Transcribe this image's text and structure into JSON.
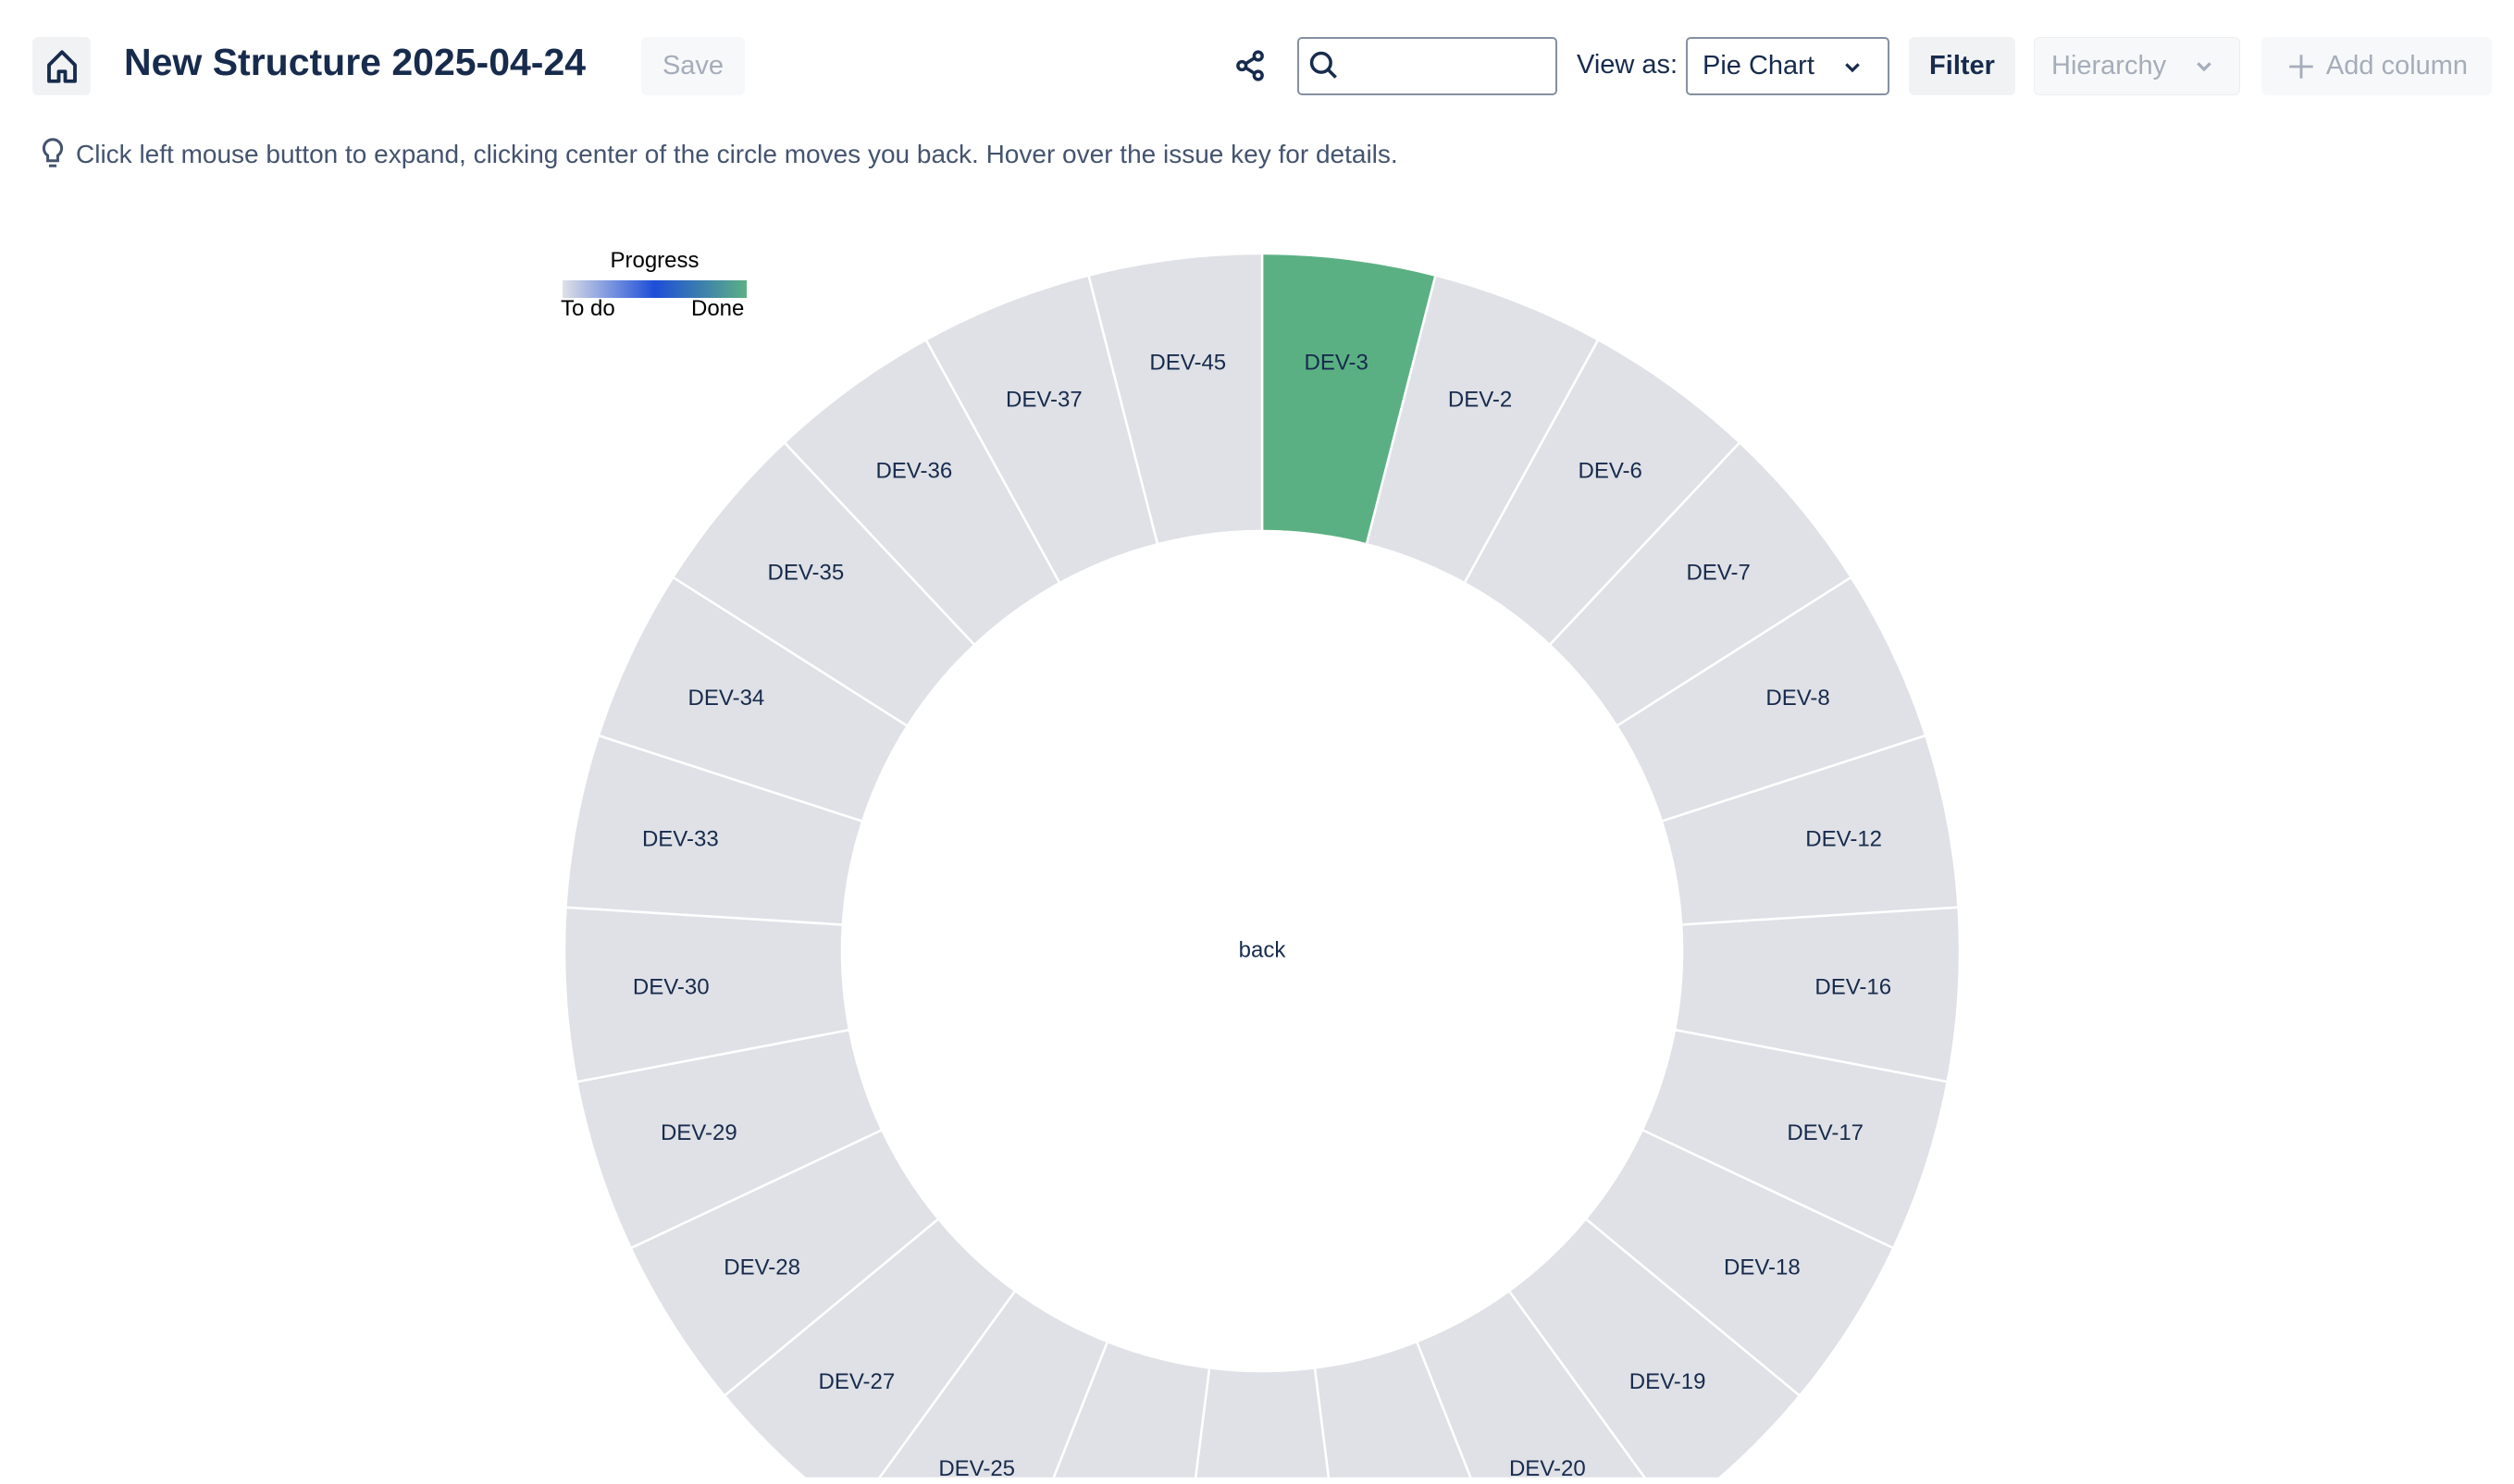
{
  "header": {
    "title": "New Structure 2025-04-24",
    "save_label": "Save",
    "search": {
      "value": "",
      "placeholder": ""
    },
    "view_as_label": "View as:",
    "view_as_value": "Pie Chart",
    "filter_label": "Filter",
    "hierarchy_label": "Hierarchy",
    "add_column_label": "Add column"
  },
  "hint": "Click left mouse button to expand, clicking center of the circle moves you back. Hover over the issue key for details.",
  "legend": {
    "title": "Progress",
    "low": "To do",
    "high": "Done",
    "colors": [
      "#dfe1e6",
      "#1d4ed8",
      "#5bb083"
    ]
  },
  "colors": {
    "todo": "#dfe1e6",
    "done": "#5bb083",
    "text": "#172b4d"
  },
  "chart_data": {
    "type": "pie",
    "variant": "sunburst-ring",
    "center_label": "back",
    "segments": [
      {
        "label": "DEV-3",
        "value": 1,
        "progress": 1
      },
      {
        "label": "DEV-2",
        "value": 1,
        "progress": 0
      },
      {
        "label": "DEV-6",
        "value": 1,
        "progress": 0
      },
      {
        "label": "DEV-7",
        "value": 1,
        "progress": 0
      },
      {
        "label": "DEV-8",
        "value": 1,
        "progress": 0
      },
      {
        "label": "DEV-12",
        "value": 1,
        "progress": 0
      },
      {
        "label": "DEV-16",
        "value": 1,
        "progress": 0
      },
      {
        "label": "DEV-17",
        "value": 1,
        "progress": 0
      },
      {
        "label": "DEV-18",
        "value": 1,
        "progress": 0
      },
      {
        "label": "DEV-19",
        "value": 1,
        "progress": 0
      },
      {
        "label": "DEV-20",
        "value": 1,
        "progress": 0
      },
      {
        "label": "",
        "value": 1,
        "progress": 0
      },
      {
        "label": "",
        "value": 1,
        "progress": 0
      },
      {
        "label": "",
        "value": 1,
        "progress": 0
      },
      {
        "label": "DEV-25",
        "value": 1,
        "progress": 0
      },
      {
        "label": "DEV-27",
        "value": 1,
        "progress": 0
      },
      {
        "label": "DEV-28",
        "value": 1,
        "progress": 0
      },
      {
        "label": "DEV-29",
        "value": 1,
        "progress": 0
      },
      {
        "label": "DEV-30",
        "value": 1,
        "progress": 0
      },
      {
        "label": "DEV-33",
        "value": 1,
        "progress": 0
      },
      {
        "label": "DEV-34",
        "value": 1,
        "progress": 0
      },
      {
        "label": "DEV-35",
        "value": 1,
        "progress": 0
      },
      {
        "label": "DEV-36",
        "value": 1,
        "progress": 0
      },
      {
        "label": "DEV-37",
        "value": 1,
        "progress": 0
      },
      {
        "label": "DEV-45",
        "value": 1,
        "progress": 0
      }
    ]
  }
}
